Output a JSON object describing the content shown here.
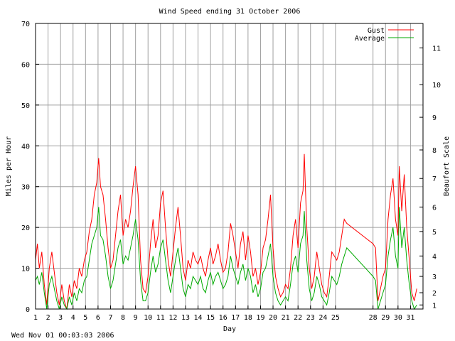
{
  "chart_data": {
    "type": "line",
    "title": "Wind Speed ending 31 October 2006",
    "xlabel": "Day",
    "ylabel": "Miles per Hour",
    "y2label": "Beaufort Scale",
    "footer": "Wed Nov 01 00:03:03 2006",
    "ylim": [
      0,
      70
    ],
    "yticks": [
      0,
      10,
      20,
      30,
      40,
      50,
      60,
      70
    ],
    "xlim": [
      1,
      32
    ],
    "xticks": [
      "1",
      "2",
      "3",
      "4",
      "5",
      "6",
      "7",
      "8",
      "9",
      "10",
      "11",
      "12",
      "13",
      "14",
      "15",
      "16",
      "17",
      "18",
      "19",
      "20",
      "21",
      "22",
      "23",
      "24",
      "25",
      "28",
      "29",
      "30",
      "31"
    ],
    "xtick_values": [
      1,
      2,
      3,
      4,
      5,
      6,
      7,
      8,
      9,
      10,
      11,
      12,
      13,
      14,
      15,
      16,
      17,
      18,
      19,
      20,
      21,
      22,
      23,
      24,
      25,
      28,
      29,
      30,
      31
    ],
    "beaufort_ticks": [
      {
        "label": "1",
        "mph": 1
      },
      {
        "label": "2",
        "mph": 4
      },
      {
        "label": "3",
        "mph": 8
      },
      {
        "label": "4",
        "mph": 13
      },
      {
        "label": "5",
        "mph": 19
      },
      {
        "label": "6",
        "mph": 25
      },
      {
        "label": "7",
        "mph": 32
      },
      {
        "label": "8",
        "mph": 39
      },
      {
        "label": "9",
        "mph": 47
      },
      {
        "label": "10",
        "mph": 55
      },
      {
        "label": "11",
        "mph": 64
      }
    ],
    "grid": true,
    "legend_position": "top-right",
    "series": [
      {
        "name": "Gust",
        "color": "#ff0000",
        "points": [
          [
            1.0,
            12
          ],
          [
            1.15,
            16
          ],
          [
            1.3,
            10
          ],
          [
            1.5,
            14
          ],
          [
            1.7,
            6
          ],
          [
            1.9,
            1
          ],
          [
            2.1,
            10
          ],
          [
            2.3,
            14
          ],
          [
            2.5,
            9
          ],
          [
            2.7,
            4
          ],
          [
            2.9,
            1
          ],
          [
            3.1,
            6
          ],
          [
            3.3,
            2
          ],
          [
            3.5,
            0
          ],
          [
            3.7,
            6
          ],
          [
            3.9,
            3
          ],
          [
            4.1,
            7
          ],
          [
            4.3,
            5
          ],
          [
            4.5,
            10
          ],
          [
            4.7,
            8
          ],
          [
            4.9,
            12
          ],
          [
            5.1,
            14
          ],
          [
            5.3,
            19
          ],
          [
            5.5,
            22
          ],
          [
            5.7,
            28
          ],
          [
            5.9,
            31
          ],
          [
            6.05,
            37
          ],
          [
            6.2,
            30
          ],
          [
            6.4,
            28
          ],
          [
            6.6,
            22
          ],
          [
            6.8,
            15
          ],
          [
            7.0,
            10
          ],
          [
            7.2,
            12
          ],
          [
            7.4,
            18
          ],
          [
            7.6,
            24
          ],
          [
            7.8,
            28
          ],
          [
            8.0,
            18
          ],
          [
            8.2,
            22
          ],
          [
            8.4,
            20
          ],
          [
            8.6,
            24
          ],
          [
            8.8,
            30
          ],
          [
            9.0,
            35
          ],
          [
            9.2,
            28
          ],
          [
            9.4,
            12
          ],
          [
            9.6,
            5
          ],
          [
            9.8,
            4
          ],
          [
            10.0,
            8
          ],
          [
            10.2,
            16
          ],
          [
            10.4,
            22
          ],
          [
            10.6,
            15
          ],
          [
            10.8,
            18
          ],
          [
            11.0,
            26
          ],
          [
            11.2,
            29
          ],
          [
            11.4,
            20
          ],
          [
            11.6,
            12
          ],
          [
            11.8,
            8
          ],
          [
            12.0,
            14
          ],
          [
            12.2,
            20
          ],
          [
            12.4,
            25
          ],
          [
            12.6,
            18
          ],
          [
            12.8,
            10
          ],
          [
            13.0,
            7
          ],
          [
            13.2,
            12
          ],
          [
            13.4,
            10
          ],
          [
            13.6,
            14
          ],
          [
            13.8,
            12
          ],
          [
            14.0,
            11
          ],
          [
            14.2,
            13
          ],
          [
            14.4,
            10
          ],
          [
            14.6,
            8
          ],
          [
            14.8,
            12
          ],
          [
            15.0,
            15
          ],
          [
            15.2,
            11
          ],
          [
            15.4,
            13
          ],
          [
            15.6,
            16
          ],
          [
            15.8,
            12
          ],
          [
            16.0,
            9
          ],
          [
            16.2,
            10
          ],
          [
            16.4,
            14
          ],
          [
            16.6,
            21
          ],
          [
            16.8,
            18
          ],
          [
            17.0,
            14
          ],
          [
            17.2,
            10
          ],
          [
            17.4,
            16
          ],
          [
            17.6,
            19
          ],
          [
            17.8,
            12
          ],
          [
            18.0,
            18
          ],
          [
            18.2,
            14
          ],
          [
            18.4,
            8
          ],
          [
            18.6,
            10
          ],
          [
            18.8,
            6
          ],
          [
            19.0,
            9
          ],
          [
            19.2,
            15
          ],
          [
            19.4,
            17
          ],
          [
            19.6,
            22
          ],
          [
            19.8,
            28
          ],
          [
            20.0,
            15
          ],
          [
            20.2,
            8
          ],
          [
            20.4,
            5
          ],
          [
            20.6,
            3
          ],
          [
            20.8,
            4
          ],
          [
            21.0,
            6
          ],
          [
            21.2,
            5
          ],
          [
            21.4,
            10
          ],
          [
            21.6,
            18
          ],
          [
            21.8,
            22
          ],
          [
            22.0,
            15
          ],
          [
            22.2,
            26
          ],
          [
            22.4,
            29
          ],
          [
            22.5,
            38
          ],
          [
            22.7,
            20
          ],
          [
            22.9,
            10
          ],
          [
            23.1,
            5
          ],
          [
            23.3,
            8
          ],
          [
            23.5,
            14
          ],
          [
            23.7,
            10
          ],
          [
            23.9,
            6
          ],
          [
            24.1,
            4
          ],
          [
            24.3,
            3
          ],
          [
            24.5,
            8
          ],
          [
            24.7,
            14
          ],
          [
            24.9,
            13
          ],
          [
            25.1,
            12
          ],
          [
            25.3,
            14
          ],
          [
            25.5,
            18
          ],
          [
            25.7,
            22
          ],
          [
            25.9,
            21
          ],
          [
            28.0,
            16
          ],
          [
            28.2,
            15
          ],
          [
            28.4,
            2
          ],
          [
            28.6,
            5
          ],
          [
            28.8,
            8
          ],
          [
            29.0,
            10
          ],
          [
            29.2,
            22
          ],
          [
            29.4,
            28
          ],
          [
            29.6,
            32
          ],
          [
            29.8,
            22
          ],
          [
            30.0,
            18
          ],
          [
            30.1,
            35
          ],
          [
            30.3,
            24
          ],
          [
            30.5,
            33
          ],
          [
            30.7,
            20
          ],
          [
            30.9,
            12
          ],
          [
            31.1,
            4
          ],
          [
            31.3,
            2
          ],
          [
            31.5,
            5
          ]
        ]
      },
      {
        "name": "Average",
        "color": "#00aa00",
        "points": [
          [
            1.0,
            7
          ],
          [
            1.15,
            8
          ],
          [
            1.3,
            6
          ],
          [
            1.5,
            9
          ],
          [
            1.7,
            4
          ],
          [
            1.9,
            0
          ],
          [
            2.1,
            6
          ],
          [
            2.3,
            8
          ],
          [
            2.5,
            5
          ],
          [
            2.7,
            2
          ],
          [
            2.9,
            0
          ],
          [
            3.1,
            3
          ],
          [
            3.3,
            1
          ],
          [
            3.5,
            0
          ],
          [
            3.7,
            3
          ],
          [
            3.9,
            1
          ],
          [
            4.1,
            4
          ],
          [
            4.3,
            2
          ],
          [
            4.5,
            5
          ],
          [
            4.7,
            4
          ],
          [
            4.9,
            7
          ],
          [
            5.1,
            8
          ],
          [
            5.3,
            12
          ],
          [
            5.5,
            16
          ],
          [
            5.7,
            18
          ],
          [
            5.9,
            20
          ],
          [
            6.05,
            25
          ],
          [
            6.2,
            18
          ],
          [
            6.4,
            17
          ],
          [
            6.6,
            13
          ],
          [
            6.8,
            8
          ],
          [
            7.0,
            5
          ],
          [
            7.2,
            7
          ],
          [
            7.4,
            11
          ],
          [
            7.6,
            15
          ],
          [
            7.8,
            17
          ],
          [
            8.0,
            11
          ],
          [
            8.2,
            13
          ],
          [
            8.4,
            12
          ],
          [
            8.6,
            15
          ],
          [
            8.8,
            18
          ],
          [
            9.0,
            22
          ],
          [
            9.2,
            17
          ],
          [
            9.4,
            7
          ],
          [
            9.6,
            2
          ],
          [
            9.8,
            2
          ],
          [
            10.0,
            4
          ],
          [
            10.2,
            9
          ],
          [
            10.4,
            13
          ],
          [
            10.6,
            9
          ],
          [
            10.8,
            11
          ],
          [
            11.0,
            15
          ],
          [
            11.2,
            17
          ],
          [
            11.4,
            12
          ],
          [
            11.6,
            7
          ],
          [
            11.8,
            4
          ],
          [
            12.0,
            8
          ],
          [
            12.2,
            12
          ],
          [
            12.4,
            15
          ],
          [
            12.6,
            10
          ],
          [
            12.8,
            5
          ],
          [
            13.0,
            3
          ],
          [
            13.2,
            6
          ],
          [
            13.4,
            5
          ],
          [
            13.6,
            8
          ],
          [
            13.8,
            7
          ],
          [
            14.0,
            6
          ],
          [
            14.2,
            8
          ],
          [
            14.4,
            5
          ],
          [
            14.6,
            4
          ],
          [
            14.8,
            7
          ],
          [
            15.0,
            9
          ],
          [
            15.2,
            6
          ],
          [
            15.4,
            8
          ],
          [
            15.6,
            9
          ],
          [
            15.8,
            7
          ],
          [
            16.0,
            5
          ],
          [
            16.2,
            6
          ],
          [
            16.4,
            8
          ],
          [
            16.6,
            13
          ],
          [
            16.8,
            10
          ],
          [
            17.0,
            8
          ],
          [
            17.2,
            6
          ],
          [
            17.4,
            9
          ],
          [
            17.6,
            11
          ],
          [
            17.8,
            7
          ],
          [
            18.0,
            10
          ],
          [
            18.2,
            8
          ],
          [
            18.4,
            4
          ],
          [
            18.6,
            6
          ],
          [
            18.8,
            3
          ],
          [
            19.0,
            5
          ],
          [
            19.2,
            9
          ],
          [
            19.4,
            10
          ],
          [
            19.6,
            13
          ],
          [
            19.8,
            16
          ],
          [
            20.0,
            8
          ],
          [
            20.2,
            4
          ],
          [
            20.4,
            2
          ],
          [
            20.6,
            1
          ],
          [
            20.8,
            2
          ],
          [
            21.0,
            3
          ],
          [
            21.2,
            2
          ],
          [
            21.4,
            6
          ],
          [
            21.6,
            11
          ],
          [
            21.8,
            13
          ],
          [
            22.0,
            9
          ],
          [
            22.2,
            16
          ],
          [
            22.4,
            18
          ],
          [
            22.5,
            24
          ],
          [
            22.7,
            12
          ],
          [
            22.9,
            5
          ],
          [
            23.1,
            2
          ],
          [
            23.3,
            4
          ],
          [
            23.5,
            8
          ],
          [
            23.7,
            6
          ],
          [
            23.9,
            3
          ],
          [
            24.1,
            2
          ],
          [
            24.3,
            1
          ],
          [
            24.5,
            4
          ],
          [
            24.7,
            8
          ],
          [
            24.9,
            7
          ],
          [
            25.1,
            6
          ],
          [
            25.3,
            8
          ],
          [
            25.5,
            11
          ],
          [
            25.7,
            13
          ],
          [
            25.9,
            15
          ],
          [
            28.0,
            8
          ],
          [
            28.2,
            7
          ],
          [
            28.4,
            0
          ],
          [
            28.6,
            2
          ],
          [
            28.8,
            4
          ],
          [
            29.0,
            6
          ],
          [
            29.2,
            13
          ],
          [
            29.4,
            17
          ],
          [
            29.6,
            20
          ],
          [
            29.8,
            13
          ],
          [
            30.0,
            10
          ],
          [
            30.1,
            25
          ],
          [
            30.3,
            15
          ],
          [
            30.5,
            20
          ],
          [
            30.7,
            12
          ],
          [
            30.9,
            6
          ],
          [
            31.1,
            2
          ],
          [
            31.3,
            0
          ],
          [
            31.5,
            1
          ]
        ]
      }
    ]
  }
}
